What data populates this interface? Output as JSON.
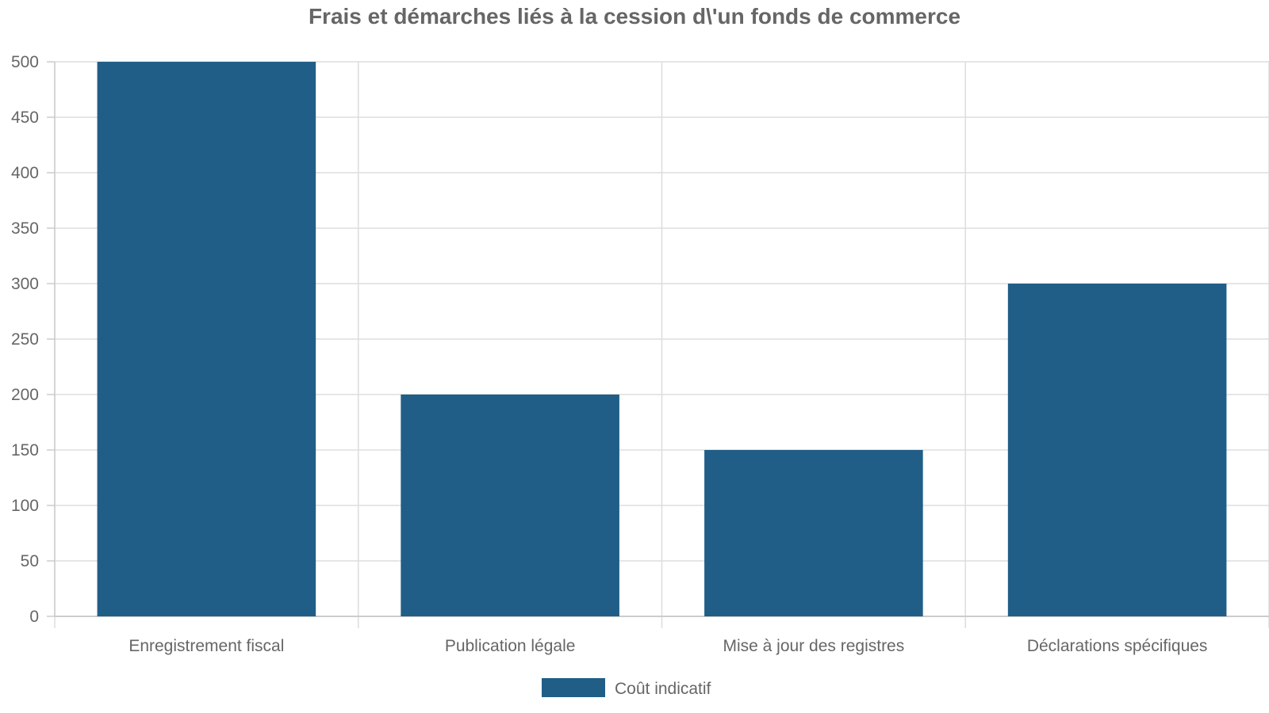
{
  "chart_data": {
    "type": "bar",
    "title": "Frais et démarches liés à la cession d\\'un fonds de commerce",
    "categories": [
      "Enregistrement fiscal",
      "Publication légale",
      "Mise à jour des registres",
      "Déclarations spécifiques"
    ],
    "series": [
      {
        "name": "Coût indicatif",
        "values": [
          500,
          200,
          150,
          300
        ],
        "color": "#205e87"
      }
    ],
    "xlabel": "",
    "ylabel": "",
    "ylim": [
      0,
      500
    ],
    "yticks": [
      0,
      50,
      100,
      150,
      200,
      250,
      300,
      350,
      400,
      450,
      500
    ],
    "grid": true,
    "legend_position": "bottom-center"
  }
}
